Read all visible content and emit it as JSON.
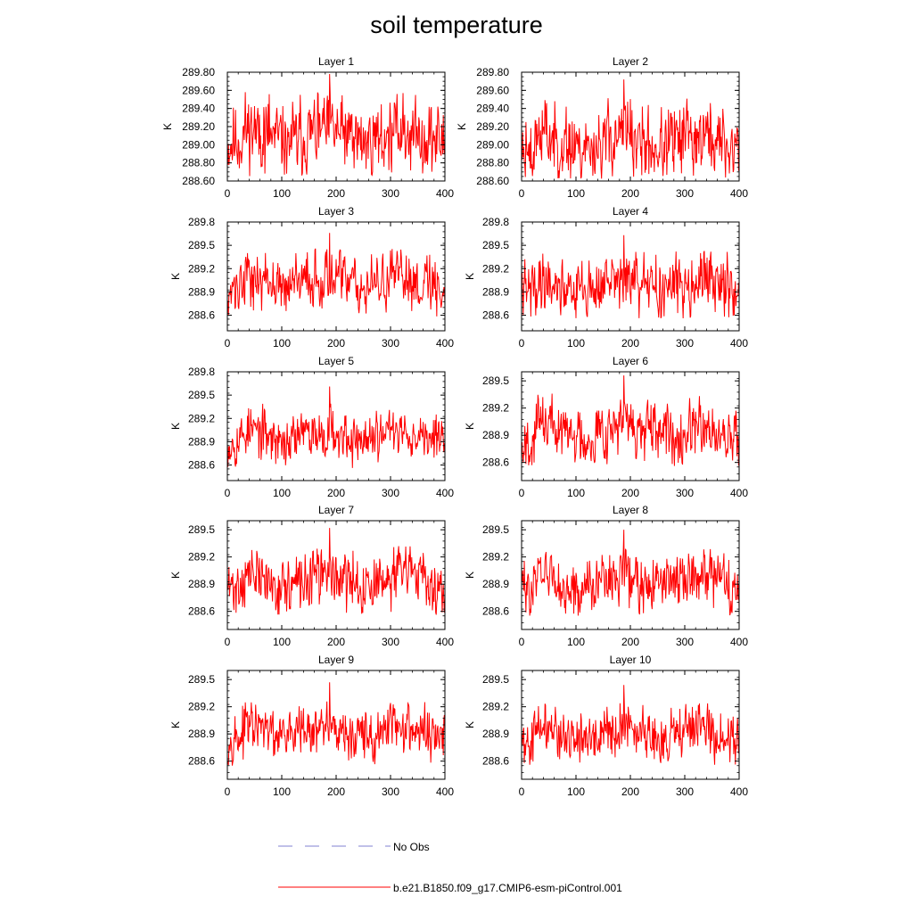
{
  "title": "soil temperature",
  "colors": {
    "series": "#ff0000",
    "obs": "#8080d0",
    "axis": "#000000"
  },
  "legend": {
    "obs_label": "No Obs",
    "model_label": "b.e21.B1850.f09_g17.CMIP6-esm-piControl.001"
  },
  "chart_data": [
    {
      "type": "line",
      "title": "Layer 1",
      "xlabel": "",
      "ylabel": "K",
      "xlim": [
        0,
        400
      ],
      "ylim": [
        288.6,
        289.8
      ],
      "xticks": [
        0,
        100,
        200,
        300,
        400
      ],
      "xtick_labels": [
        "0",
        "100",
        "200",
        "300",
        "400"
      ],
      "yticks": [
        288.6,
        288.8,
        289.0,
        289.2,
        289.4,
        289.6,
        289.8
      ],
      "ytick_labels": [
        "288.60",
        "288.80",
        "289.00",
        "289.20",
        "289.40",
        "289.60",
        "289.80"
      ],
      "series": [
        {
          "name": "b.e21.B1850.f09_g17.CMIP6-esm-piControl.001",
          "mean": 289.1,
          "amp": 0.2,
          "peak": 289.78,
          "peak_x": 188,
          "min": 288.65,
          "seed": 11,
          "x_start": 1,
          "x_end": 400
        }
      ]
    },
    {
      "type": "line",
      "title": "Layer 2",
      "xlabel": "",
      "ylabel": "K",
      "xlim": [
        0,
        400
      ],
      "ylim": [
        288.6,
        289.8
      ],
      "xticks": [
        0,
        100,
        200,
        300,
        400
      ],
      "xtick_labels": [
        "0",
        "100",
        "200",
        "300",
        "400"
      ],
      "yticks": [
        288.6,
        288.8,
        289.0,
        289.2,
        289.4,
        289.6,
        289.8
      ],
      "ytick_labels": [
        "288.60",
        "288.80",
        "289.00",
        "289.20",
        "289.40",
        "289.60",
        "289.80"
      ],
      "series": [
        {
          "name": "b.e21.B1850.f09_g17.CMIP6-esm-piControl.001",
          "mean": 289.03,
          "amp": 0.2,
          "peak": 289.72,
          "peak_x": 188,
          "min": 288.62,
          "seed": 23,
          "x_start": 1,
          "x_end": 400
        }
      ]
    },
    {
      "type": "line",
      "title": "Layer 3",
      "xlabel": "",
      "ylabel": "K",
      "xlim": [
        0,
        400
      ],
      "ylim": [
        288.4,
        289.8
      ],
      "xticks": [
        0,
        100,
        200,
        300,
        400
      ],
      "xtick_labels": [
        "0",
        "100",
        "200",
        "300",
        "400"
      ],
      "yticks": [
        288.6,
        288.9,
        289.2,
        289.5,
        289.8
      ],
      "ytick_labels": [
        "288.6",
        "288.9",
        "289.2",
        "289.5",
        "289.8"
      ],
      "series": [
        {
          "name": "b.e21.B1850.f09_g17.CMIP6-esm-piControl.001",
          "mean": 289.02,
          "amp": 0.18,
          "peak": 289.66,
          "peak_x": 188,
          "min": 288.58,
          "seed": 37,
          "x_start": 1,
          "x_end": 400
        }
      ]
    },
    {
      "type": "line",
      "title": "Layer 4",
      "xlabel": "",
      "ylabel": "K",
      "xlim": [
        0,
        400
      ],
      "ylim": [
        288.4,
        289.8
      ],
      "xticks": [
        0,
        100,
        200,
        300,
        400
      ],
      "xtick_labels": [
        "0",
        "100",
        "200",
        "300",
        "400"
      ],
      "yticks": [
        288.6,
        288.9,
        289.2,
        289.5,
        289.8
      ],
      "ytick_labels": [
        "288.6",
        "288.9",
        "289.2",
        "289.5",
        "289.8"
      ],
      "series": [
        {
          "name": "b.e21.B1850.f09_g17.CMIP6-esm-piControl.001",
          "mean": 288.98,
          "amp": 0.18,
          "peak": 289.63,
          "peak_x": 188,
          "min": 288.56,
          "seed": 41,
          "x_start": 1,
          "x_end": 400
        }
      ]
    },
    {
      "type": "line",
      "title": "Layer 5",
      "xlabel": "",
      "ylabel": "K",
      "xlim": [
        0,
        400
      ],
      "ylim": [
        288.4,
        289.8
      ],
      "xticks": [
        0,
        100,
        200,
        300,
        400
      ],
      "xtick_labels": [
        "0",
        "100",
        "200",
        "300",
        "400"
      ],
      "yticks": [
        288.6,
        288.9,
        289.2,
        289.5,
        289.8
      ],
      "ytick_labels": [
        "288.6",
        "288.9",
        "289.2",
        "289.5",
        "289.8"
      ],
      "series": [
        {
          "name": "b.e21.B1850.f09_g17.CMIP6-esm-piControl.001",
          "mean": 288.98,
          "amp": 0.16,
          "peak": 289.61,
          "peak_x": 188,
          "min": 288.56,
          "seed": 53,
          "x_start": 1,
          "x_end": 400
        }
      ]
    },
    {
      "type": "line",
      "title": "Layer 6",
      "xlabel": "",
      "ylabel": "K",
      "xlim": [
        0,
        400
      ],
      "ylim": [
        288.4,
        289.6
      ],
      "xticks": [
        0,
        100,
        200,
        300,
        400
      ],
      "xtick_labels": [
        "0",
        "100",
        "200",
        "300",
        "400"
      ],
      "yticks": [
        288.6,
        288.9,
        289.2,
        289.5
      ],
      "ytick_labels": [
        "288.6",
        "288.9",
        "289.2",
        "289.5"
      ],
      "series": [
        {
          "name": "b.e21.B1850.f09_g17.CMIP6-esm-piControl.001",
          "mean": 288.95,
          "amp": 0.16,
          "peak": 289.56,
          "peak_x": 188,
          "min": 288.55,
          "seed": 67,
          "x_start": 1,
          "x_end": 400
        }
      ]
    },
    {
      "type": "line",
      "title": "Layer 7",
      "xlabel": "",
      "ylabel": "K",
      "xlim": [
        0,
        400
      ],
      "ylim": [
        288.4,
        289.6
      ],
      "xticks": [
        0,
        100,
        200,
        300,
        400
      ],
      "xtick_labels": [
        "0",
        "100",
        "200",
        "300",
        "400"
      ],
      "yticks": [
        288.6,
        288.9,
        289.2,
        289.5
      ],
      "ytick_labels": [
        "288.6",
        "288.9",
        "289.2",
        "289.5"
      ],
      "series": [
        {
          "name": "b.e21.B1850.f09_g17.CMIP6-esm-piControl.001",
          "mean": 288.93,
          "amp": 0.15,
          "peak": 289.52,
          "peak_x": 188,
          "min": 288.55,
          "seed": 71,
          "x_start": 1,
          "x_end": 400
        }
      ]
    },
    {
      "type": "line",
      "title": "Layer 8",
      "xlabel": "",
      "ylabel": "K",
      "xlim": [
        0,
        400
      ],
      "ylim": [
        288.4,
        289.6
      ],
      "xticks": [
        0,
        100,
        200,
        300,
        400
      ],
      "xtick_labels": [
        "0",
        "100",
        "200",
        "300",
        "400"
      ],
      "yticks": [
        288.6,
        288.9,
        289.2,
        289.5
      ],
      "ytick_labels": [
        "288.6",
        "288.9",
        "289.2",
        "289.5"
      ],
      "series": [
        {
          "name": "b.e21.B1850.f09_g17.CMIP6-esm-piControl.001",
          "mean": 288.93,
          "amp": 0.15,
          "peak": 289.5,
          "peak_x": 188,
          "min": 288.55,
          "seed": 83,
          "x_start": 1,
          "x_end": 400
        }
      ]
    },
    {
      "type": "line",
      "title": "Layer 9",
      "xlabel": "",
      "ylabel": "K",
      "xlim": [
        0,
        400
      ],
      "ylim": [
        288.4,
        289.6
      ],
      "xticks": [
        0,
        100,
        200,
        300,
        400
      ],
      "xtick_labels": [
        "0",
        "100",
        "200",
        "300",
        "400"
      ],
      "yticks": [
        288.6,
        288.9,
        289.2,
        289.5
      ],
      "ytick_labels": [
        "288.6",
        "288.9",
        "289.2",
        "289.5"
      ],
      "series": [
        {
          "name": "b.e21.B1850.f09_g17.CMIP6-esm-piControl.001",
          "mean": 288.92,
          "amp": 0.14,
          "peak": 289.47,
          "peak_x": 188,
          "min": 288.55,
          "seed": 97,
          "x_start": 1,
          "x_end": 400
        }
      ]
    },
    {
      "type": "line",
      "title": "Layer 10",
      "xlabel": "",
      "ylabel": "K",
      "xlim": [
        0,
        400
      ],
      "ylim": [
        288.4,
        289.6
      ],
      "xticks": [
        0,
        100,
        200,
        300,
        400
      ],
      "xtick_labels": [
        "0",
        "100",
        "200",
        "300",
        "400"
      ],
      "yticks": [
        288.6,
        288.9,
        289.2,
        289.5
      ],
      "ytick_labels": [
        "288.6",
        "288.9",
        "289.2",
        "289.5"
      ],
      "series": [
        {
          "name": "b.e21.B1850.f09_g17.CMIP6-esm-piControl.001",
          "mean": 288.91,
          "amp": 0.14,
          "peak": 289.44,
          "peak_x": 188,
          "min": 288.55,
          "seed": 101,
          "x_start": 1,
          "x_end": 400
        }
      ]
    }
  ]
}
